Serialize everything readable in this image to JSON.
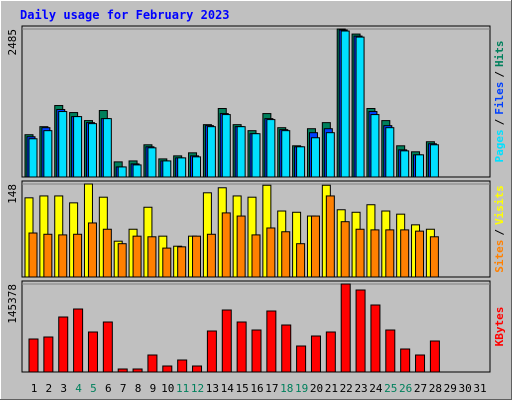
{
  "title": "Daily usage for February 2023",
  "legend_separator": "/",
  "chart_data": [
    {
      "type": "bar",
      "ylim": [
        0,
        2485
      ],
      "yticks": [
        2485
      ],
      "series": [
        {
          "name": "Hits",
          "color": "#00805c",
          "values": [
            710,
            845,
            1200,
            1082,
            947,
            1116,
            254,
            270,
            541,
            304,
            355,
            406,
            879,
            1150,
            879,
            778,
            1065,
            828,
            524,
            811,
            913,
            2485,
            2400,
            1150,
            947,
            524,
            423,
            592,
            null,
            null,
            null
          ]
        },
        {
          "name": "Files",
          "color": "#0040ff",
          "values": [
            676,
            828,
            1133,
            1014,
            913,
            980,
            169,
            220,
            507,
            270,
            321,
            355,
            862,
            1065,
            845,
            727,
            980,
            795,
            507,
            744,
            811,
            2468,
            2366,
            1099,
            862,
            456,
            372,
            558,
            null,
            null,
            null
          ]
        },
        {
          "name": "Pages",
          "color": "#00e0ff",
          "values": [
            642,
            778,
            1099,
            1014,
            896,
            980,
            169,
            203,
            490,
            270,
            321,
            338,
            845,
            1048,
            845,
            727,
            964,
            778,
            507,
            659,
            744,
            2451,
            2349,
            1048,
            828,
            439,
            372,
            541,
            null,
            null,
            null
          ]
        }
      ]
    },
    {
      "type": "bar",
      "ylim": [
        0,
        148
      ],
      "yticks": [
        148
      ],
      "series": [
        {
          "name": "Visits",
          "color": "#ffff00",
          "values": [
            126,
            129,
            129,
            118,
            148,
            127,
            57,
            76,
            111,
            65,
            49,
            65,
            134,
            142,
            129,
            127,
            146,
            105,
            103,
            97,
            146,
            107,
            103,
            115,
            105,
            100,
            83,
            76,
            null,
            null,
            null
          ]
        },
        {
          "name": "Sites",
          "color": "#ff8000",
          "values": [
            70,
            68,
            67,
            68,
            86,
            76,
            53,
            65,
            64,
            46,
            48,
            65,
            68,
            102,
            97,
            67,
            78,
            72,
            53,
            97,
            129,
            88,
            76,
            75,
            75,
            75,
            73,
            64,
            null,
            null,
            null
          ]
        }
      ]
    },
    {
      "type": "bar",
      "ylim": [
        0,
        145378
      ],
      "yticks": [
        145378
      ],
      "categories": [
        "1",
        "2",
        "3",
        "4",
        "5",
        "6",
        "7",
        "8",
        "9",
        "10",
        "11",
        "12",
        "13",
        "14",
        "15",
        "16",
        "17",
        "18",
        "19",
        "20",
        "21",
        "22",
        "23",
        "24",
        "25",
        "26",
        "27",
        "28",
        "29",
        "30",
        "31"
      ],
      "category_colors": [
        "#000000",
        "#000000",
        "#000000",
        "#00805c",
        "#00805c",
        "#000000",
        "#000000",
        "#000000",
        "#000000",
        "#000000",
        "#00805c",
        "#00805c",
        "#000000",
        "#000000",
        "#000000",
        "#000000",
        "#000000",
        "#00805c",
        "#00805c",
        "#000000",
        "#000000",
        "#000000",
        "#000000",
        "#000000",
        "#00805c",
        "#00805c",
        "#000000",
        "#000000",
        "#000000",
        "#000000",
        "#000000"
      ],
      "series": [
        {
          "name": "KBytes",
          "color": "#ff0000",
          "values": [
            54517,
            57821,
            90862,
            104078,
            66081,
            82601,
            4956,
            4956,
            28084,
            9912,
            19824,
            9912,
            67733,
            102426,
            82601,
            69385,
            100774,
            77645,
            42953,
            59473,
            66081,
            145378,
            135466,
            110686,
            69385,
            37997,
            28084,
            51212,
            null,
            null,
            null
          ]
        }
      ]
    }
  ]
}
